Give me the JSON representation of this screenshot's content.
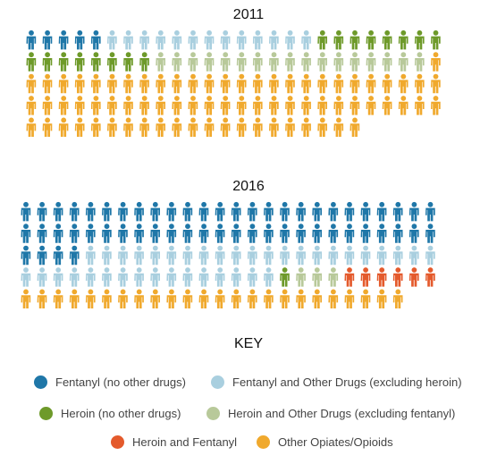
{
  "colors": {
    "fentanyl_only": "#1f77a8",
    "fentanyl_other": "#a9cfdf",
    "heroin_only": "#6e9a2a",
    "heroin_other": "#b8c99a",
    "heroin_fentanyl": "#e45a2c",
    "other_opiates": "#f0a92d"
  },
  "chart_data": [
    {
      "type": "pictogram",
      "title": "2011",
      "icon": "person-icon",
      "per_row": 26,
      "counts": [
        {
          "category": "fentanyl_only",
          "count": 5
        },
        {
          "category": "fentanyl_other",
          "count": 13
        },
        {
          "category": "heroin_only",
          "count": 16
        },
        {
          "category": "heroin_other",
          "count": 17
        },
        {
          "category": "heroin_fentanyl",
          "count": 0
        },
        {
          "category": "other_opiates",
          "count": 74
        }
      ]
    },
    {
      "type": "pictogram",
      "title": "2016",
      "icon": "person-icon",
      "per_row": 26,
      "counts": [
        {
          "category": "fentanyl_only",
          "count": 56
        },
        {
          "category": "fentanyl_other",
          "count": 38
        },
        {
          "category": "heroin_only",
          "count": 1
        },
        {
          "category": "heroin_other",
          "count": 3
        },
        {
          "category": "heroin_fentanyl",
          "count": 6
        },
        {
          "category": "other_opiates",
          "count": 24
        }
      ]
    }
  ],
  "key": {
    "title": "KEY",
    "items": [
      {
        "id": "fentanyl_only",
        "label": "Fentanyl (no other drugs)"
      },
      {
        "id": "fentanyl_other",
        "label": "Fentanyl and Other Drugs (excluding heroin)"
      },
      {
        "id": "heroin_only",
        "label": "Heroin (no other drugs)"
      },
      {
        "id": "heroin_other",
        "label": "Heroin and Other Drugs (excluding fentanyl)"
      },
      {
        "id": "heroin_fentanyl",
        "label": "Heroin and Fentanyl"
      },
      {
        "id": "other_opiates",
        "label": "Other Opiates/Opioids"
      }
    ]
  }
}
